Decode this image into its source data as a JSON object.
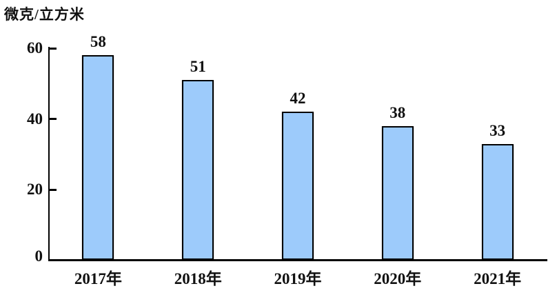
{
  "chart_data": {
    "type": "bar",
    "title": "",
    "unit_label": "微克/立方米",
    "ylabel": "微克/立方米",
    "xlabel": "",
    "categories": [
      "2017年",
      "2018年",
      "2019年",
      "2020年",
      "2021年"
    ],
    "values": [
      58,
      51,
      42,
      38,
      33
    ],
    "data_labels": [
      "58",
      "51",
      "42",
      "38",
      "33"
    ],
    "ylim": [
      0,
      60
    ],
    "yticks": [
      0,
      20,
      40,
      60
    ],
    "grid": false,
    "legend": "none",
    "colors": {
      "bar_fill": "#9dcbfb",
      "bar_border": "#000000",
      "axis": "#000000",
      "text": "#111111",
      "background": "#ffffff"
    }
  }
}
